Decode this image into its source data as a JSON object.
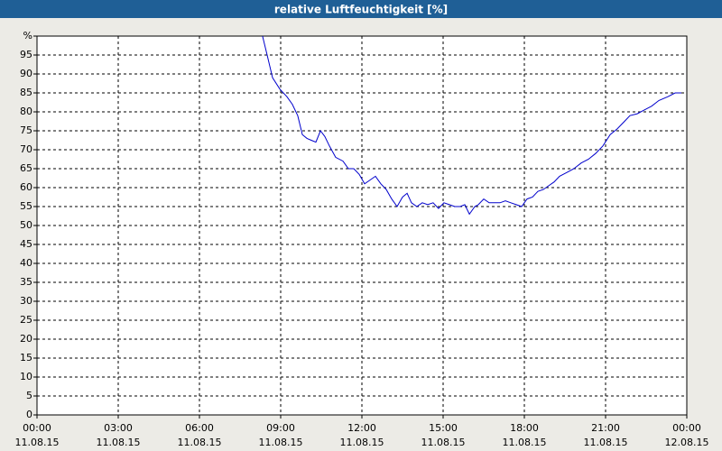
{
  "chart_data": {
    "type": "line",
    "title": "relative Luftfeuchtigkeit [%]",
    "xlim": [
      0,
      24
    ],
    "ylim": [
      0,
      100
    ],
    "xticks": [
      {
        "value": 0,
        "label": "00:00",
        "date": "11.08.15"
      },
      {
        "value": 3,
        "label": "03:00",
        "date": "11.08.15"
      },
      {
        "value": 6,
        "label": "06:00",
        "date": "11.08.15"
      },
      {
        "value": 9,
        "label": "09:00",
        "date": "11.08.15"
      },
      {
        "value": 12,
        "label": "12:00",
        "date": "11.08.15"
      },
      {
        "value": 15,
        "label": "15:00",
        "date": "11.08.15"
      },
      {
        "value": 18,
        "label": "18:00",
        "date": "11.08.15"
      },
      {
        "value": 21,
        "label": "21:00",
        "date": "11.08.15"
      },
      {
        "value": 24,
        "label": "00:00",
        "date": "12.08.15"
      }
    ],
    "yticks": [
      0,
      5,
      10,
      15,
      20,
      25,
      30,
      35,
      40,
      45,
      50,
      55,
      60,
      65,
      70,
      75,
      80,
      85,
      90,
      95,
      {
        "value": 100,
        "label": "%"
      }
    ],
    "grid": true,
    "x": [
      8.33,
      8.5,
      8.7,
      8.97,
      9.23,
      9.43,
      9.63,
      9.8,
      9.97,
      10.13,
      10.3,
      10.47,
      10.63,
      10.8,
      11.03,
      11.3,
      11.5,
      11.7,
      11.9,
      12.1,
      12.3,
      12.5,
      12.7,
      12.9,
      13.1,
      13.3,
      13.5,
      13.67,
      13.83,
      14.03,
      14.23,
      14.43,
      14.63,
      14.83,
      15.03,
      15.23,
      15.43,
      15.63,
      15.8,
      15.97,
      16.17,
      16.3,
      16.5,
      16.7,
      16.9,
      17.1,
      17.3,
      17.5,
      17.7,
      17.9,
      18.1,
      18.3,
      18.5,
      18.7,
      18.9,
      19.1,
      19.3,
      19.57,
      19.83,
      20.1,
      20.37,
      20.63,
      20.9,
      21.17,
      21.43,
      21.7,
      21.9,
      22.17,
      22.43,
      22.7,
      22.97,
      23.3,
      23.57,
      23.8
    ],
    "series": [
      {
        "name": "relative Luftfeuchtigkeit",
        "color": "#0000cc",
        "values": [
          100,
          95,
          89,
          86,
          84,
          82,
          79,
          74,
          73,
          72.5,
          72,
          75,
          73.5,
          71,
          68,
          67,
          65,
          65,
          63.5,
          61,
          62,
          63,
          61,
          59.5,
          57,
          55,
          57.5,
          58.5,
          56,
          55,
          56,
          55.5,
          56,
          54.5,
          56,
          55.5,
          55,
          55,
          55.5,
          53,
          55,
          55.5,
          57,
          56,
          56,
          56,
          56.5,
          56,
          55.5,
          55,
          57,
          57.5,
          59,
          59.5,
          60.5,
          61.5,
          63,
          64,
          65,
          66.5,
          67.5,
          69,
          71,
          74,
          75.5,
          77.5,
          79,
          79.5,
          80.5,
          81.5,
          83,
          84,
          85,
          85
        ]
      }
    ]
  }
}
